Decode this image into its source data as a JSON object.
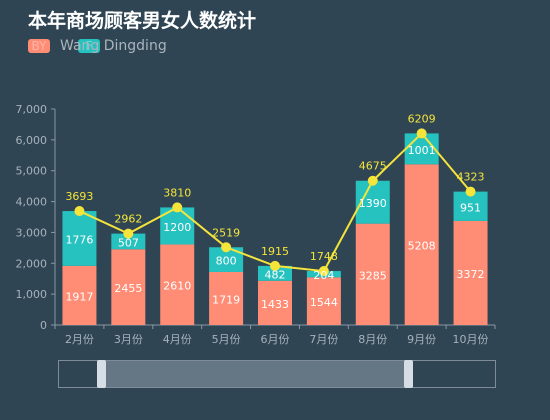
{
  "chart_data": {
    "type": "bar",
    "title": "本年商场顾客男女人数统计",
    "subtitle": "Wang Dingding",
    "legend": [
      {
        "label": "BY",
        "color": "#ff8c75"
      },
      {
        "label": "F",
        "color": "#26c2c0"
      }
    ],
    "categories": [
      "2月份",
      "3月份",
      "4月份",
      "5月份",
      "6月份",
      "7月份",
      "8月份",
      "9月份",
      "10月份"
    ],
    "series": [
      {
        "values": [
          1917,
          2455,
          2610,
          1719,
          1433,
          1544,
          3285,
          5208,
          3372
        ],
        "color": "#ff8c75"
      },
      {
        "values": [
          1776,
          507,
          1200,
          800,
          482,
          204,
          1390,
          1001,
          951
        ],
        "color": "#26c2c0"
      },
      {
        "type": "line",
        "values": [
          3693,
          2962,
          3810,
          2519,
          1915,
          1748,
          4675,
          6209,
          4323
        ],
        "color": "#f5e43a"
      }
    ],
    "yticks": [
      "0",
      "1,000",
      "2,000",
      "3,000",
      "4,000",
      "5,000",
      "6,000",
      "7,000"
    ],
    "ylim": [
      0,
      7000
    ],
    "grid": false,
    "legend_position": "top-left",
    "zoom": {
      "start": 0.1,
      "end": 0.8
    }
  }
}
